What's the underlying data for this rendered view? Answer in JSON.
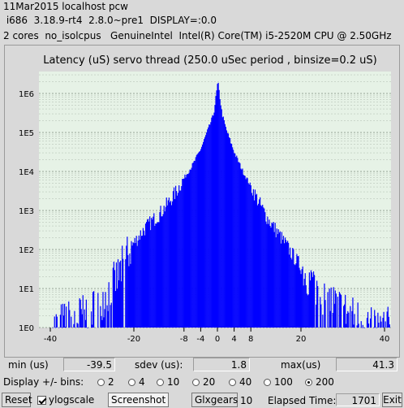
{
  "header": {
    "line1": "11Mar2015 localhost pcw",
    "line2": " i686  3.18.9-rt4  2.8.0~pre1  DISPLAY=:0.0",
    "line3": "2 cores  no_isolcpus   GenuineIntel  Intel(R) Core(TM) i5-2520M CPU @ 2.50GHz"
  },
  "chart_data": {
    "type": "bar",
    "title": "Latency (uS) servo thread (250.0 uSec period , binsize=0.2 uS)",
    "xlabel": "",
    "ylabel": "",
    "x_ticks": [
      -40,
      -20,
      -8,
      -4,
      0,
      4,
      8,
      20,
      40
    ],
    "y_ticks": [
      "1E0",
      "1E1",
      "1E2",
      "1E3",
      "1E4",
      "1E5",
      "1E6"
    ],
    "ylog": true,
    "ylim": [
      1,
      3000000
    ],
    "xlim": [
      -40,
      40
    ],
    "bin_size": 0.2,
    "color": "#0000ff",
    "background": "#e6f2e6",
    "grid": true,
    "envelope_points": [
      {
        "x": -39.5,
        "count": 1
      },
      {
        "x": -38,
        "count": 1.3
      },
      {
        "x": -36,
        "count": 1.5
      },
      {
        "x": -34,
        "count": 1.8
      },
      {
        "x": -32,
        "count": 2.3
      },
      {
        "x": -30,
        "count": 3
      },
      {
        "x": -28,
        "count": 5
      },
      {
        "x": -26,
        "count": 9
      },
      {
        "x": -24,
        "count": 20
      },
      {
        "x": -22,
        "count": 60
      },
      {
        "x": -20,
        "count": 150
      },
      {
        "x": -18,
        "count": 300
      },
      {
        "x": -16,
        "count": 500
      },
      {
        "x": -14,
        "count": 800
      },
      {
        "x": -12,
        "count": 1500
      },
      {
        "x": -10,
        "count": 3000
      },
      {
        "x": -8,
        "count": 7000
      },
      {
        "x": -6,
        "count": 15000
      },
      {
        "x": -4,
        "count": 40000
      },
      {
        "x": -2,
        "count": 150000
      },
      {
        "x": -1,
        "count": 300000
      },
      {
        "x": 0,
        "count": 2000000
      },
      {
        "x": 1,
        "count": 300000
      },
      {
        "x": 2,
        "count": 120000
      },
      {
        "x": 4,
        "count": 30000
      },
      {
        "x": 6,
        "count": 10000
      },
      {
        "x": 8,
        "count": 4000
      },
      {
        "x": 10,
        "count": 1500
      },
      {
        "x": 12,
        "count": 600
      },
      {
        "x": 14,
        "count": 300
      },
      {
        "x": 16,
        "count": 150
      },
      {
        "x": 18,
        "count": 70
      },
      {
        "x": 20,
        "count": 35
      },
      {
        "x": 22,
        "count": 18
      },
      {
        "x": 24,
        "count": 10
      },
      {
        "x": 26,
        "count": 6
      },
      {
        "x": 28,
        "count": 4
      },
      {
        "x": 30,
        "count": 3
      },
      {
        "x": 32,
        "count": 2
      },
      {
        "x": 34,
        "count": 1.6
      },
      {
        "x": 36,
        "count": 1.3
      },
      {
        "x": 38,
        "count": 1.1
      },
      {
        "x": 41.3,
        "count": 1
      }
    ]
  },
  "stats": {
    "min_label": "min (us)",
    "min_value": "-39.5",
    "sdev_label": "sdev (us):",
    "sdev_value": "1.8",
    "max_label": "max(us)",
    "max_value": "41.3"
  },
  "bins": {
    "label": "Display +/- bins:",
    "options": [
      "2",
      "4",
      "10",
      "20",
      "40",
      "100",
      "200"
    ],
    "selected": "200"
  },
  "bottom": {
    "reset_label": "Reset",
    "ylogscale_label": "ylogscale",
    "ylogscale_checked": true,
    "screenshot_label": "Screenshot",
    "glxgears_label": "Glxgears",
    "glxgears_value": "10",
    "elapsed_label": "Elapsed Time:",
    "elapsed_value": "1701",
    "exit_label": "Exit"
  }
}
